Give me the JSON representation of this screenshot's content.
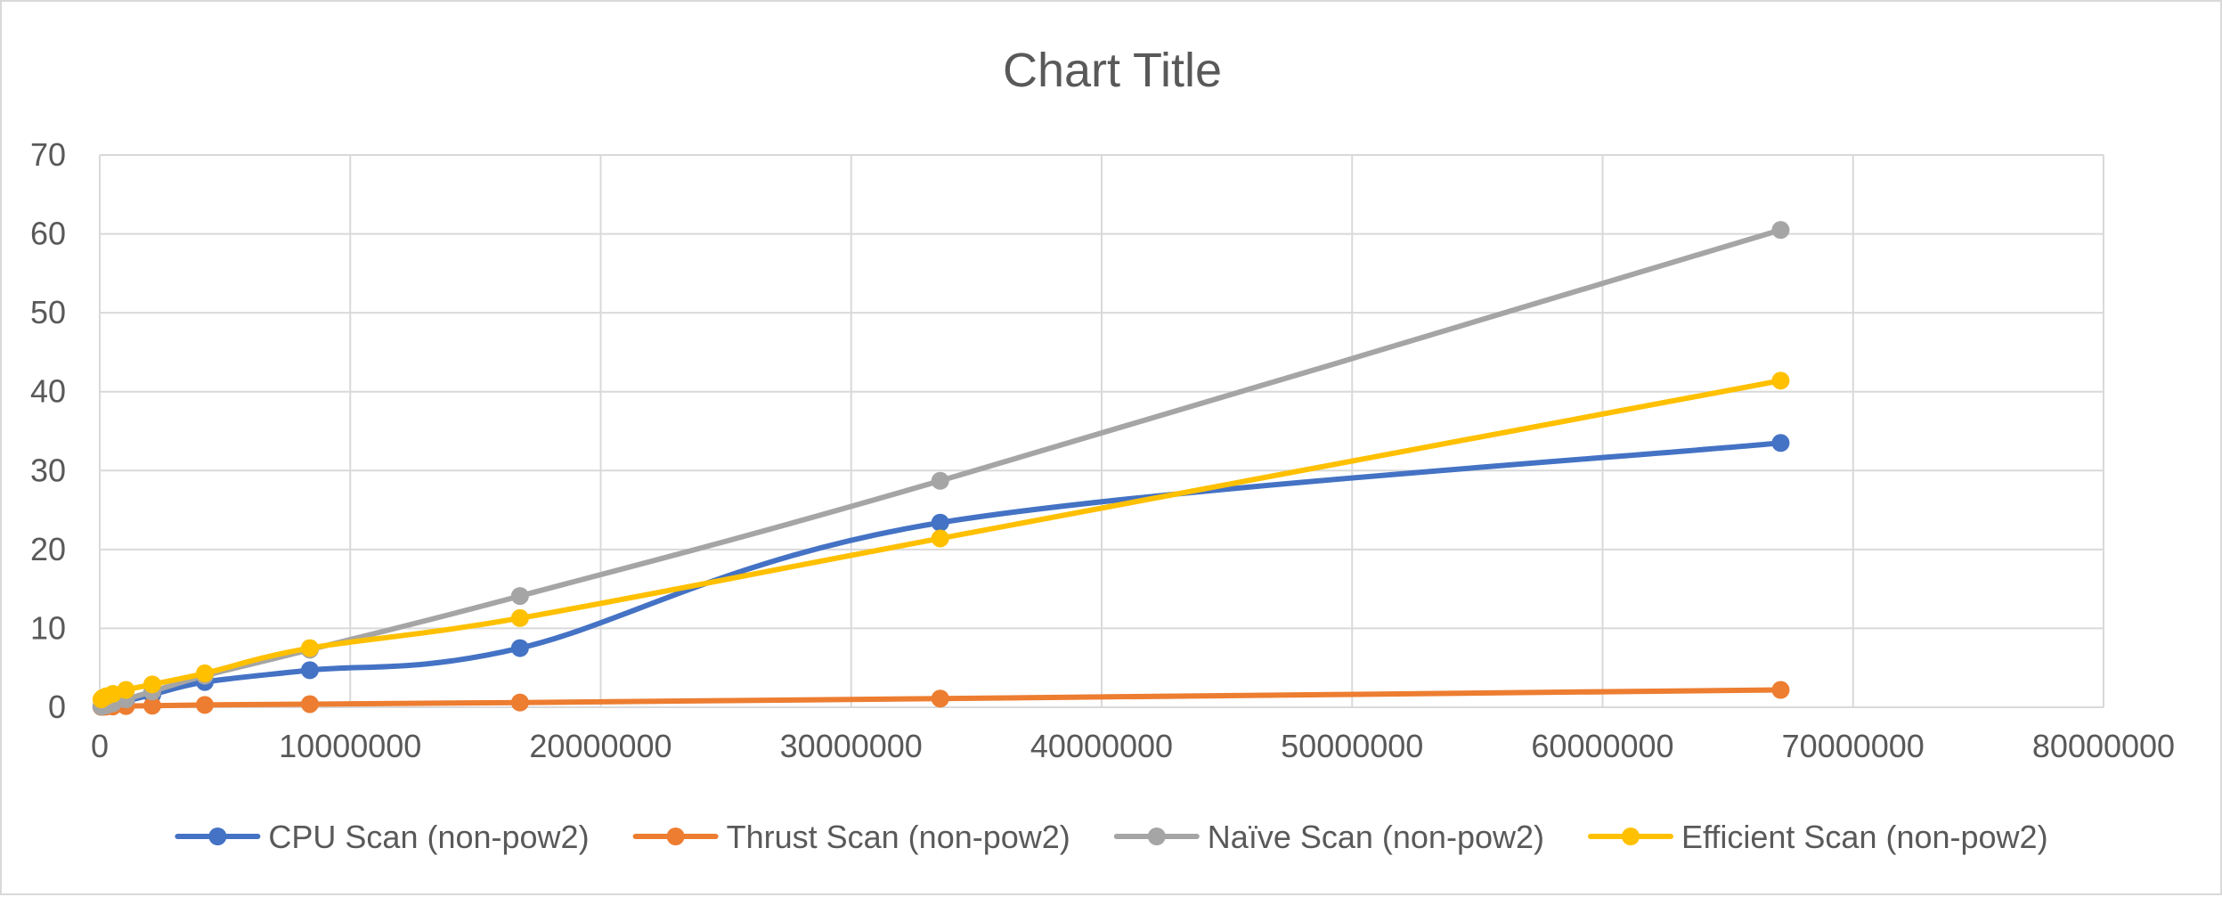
{
  "chart_data": {
    "type": "line",
    "title": "Chart Title",
    "xlabel": "",
    "ylabel": "",
    "xlim": [
      0,
      80000000
    ],
    "ylim": [
      0,
      70
    ],
    "x_ticks": [
      "0",
      "10000000",
      "20000000",
      "30000000",
      "40000000",
      "50000000",
      "60000000",
      "70000000",
      "80000000"
    ],
    "y_ticks": [
      "0",
      "10",
      "20",
      "30",
      "40",
      "50",
      "60",
      "70"
    ],
    "grid": true,
    "smoothed": true,
    "legend_position": "bottom",
    "x": [
      65536,
      131072,
      262144,
      524288,
      1048576,
      2097152,
      4194304,
      8388608,
      16777216,
      33554432,
      67108864
    ],
    "series": [
      {
        "name": "CPU Scan (non-pow2)",
        "color": "#4472C4",
        "values": [
          0.05,
          0.1,
          0.2,
          0.4,
          0.8,
          1.6,
          3.2,
          4.7,
          7.5,
          23.4,
          33.5
        ]
      },
      {
        "name": "Thrust Scan (non-pow2)",
        "color": "#ED7D31",
        "values": [
          0.05,
          0.06,
          0.08,
          0.1,
          0.15,
          0.2,
          0.3,
          0.4,
          0.6,
          1.1,
          2.2
        ]
      },
      {
        "name": "Naïve Scan (non-pow2)",
        "color": "#A5A5A5",
        "values": [
          0.1,
          0.15,
          0.25,
          0.5,
          1.0,
          2.0,
          4.0,
          7.3,
          14.1,
          28.7,
          60.5
        ]
      },
      {
        "name": "Efficient Scan (non-pow2)",
        "color": "#FFC000",
        "values": [
          1.0,
          1.2,
          1.4,
          1.7,
          2.2,
          2.9,
          4.3,
          7.5,
          11.3,
          21.4,
          41.4
        ]
      }
    ]
  }
}
